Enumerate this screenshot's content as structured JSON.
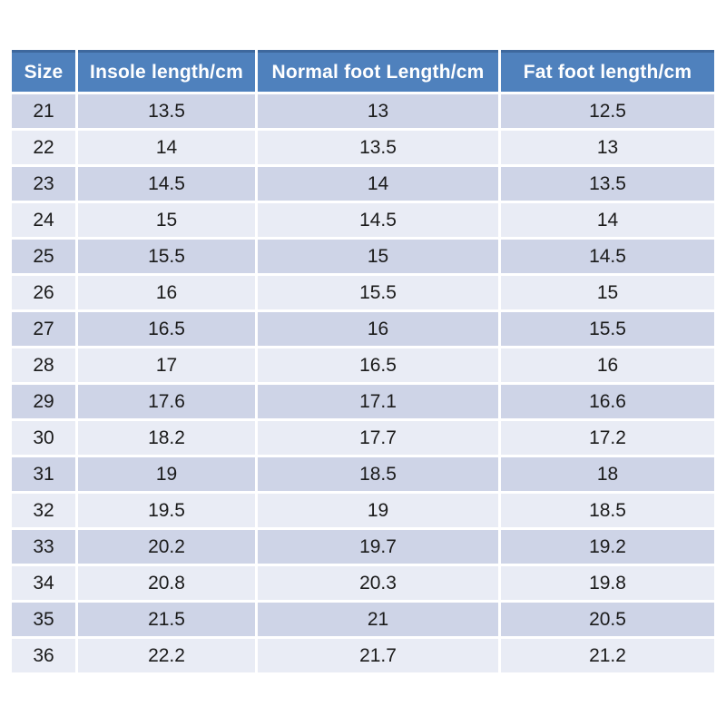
{
  "colors": {
    "header_bg": "#4f81bd",
    "header_top_border": "#3e689d",
    "header_text": "#ffffff",
    "row_odd_bg": "#ced4e7",
    "row_even_bg": "#e9ecf5",
    "grid_gap": "#ffffff",
    "cell_text": "#1b1b1b",
    "page_bg": "#ffffff"
  },
  "chart_data": {
    "type": "table",
    "columns": [
      "Size",
      "Insole length/cm",
      "Normal foot Length/cm",
      "Fat foot length/cm"
    ],
    "rows": [
      [
        "21",
        "13.5",
        "13",
        "12.5"
      ],
      [
        "22",
        "14",
        "13.5",
        "13"
      ],
      [
        "23",
        "14.5",
        "14",
        "13.5"
      ],
      [
        "24",
        "15",
        "14.5",
        "14"
      ],
      [
        "25",
        "15.5",
        "15",
        "14.5"
      ],
      [
        "26",
        "16",
        "15.5",
        "15"
      ],
      [
        "27",
        "16.5",
        "16",
        "15.5"
      ],
      [
        "28",
        "17",
        "16.5",
        "16"
      ],
      [
        "29",
        "17.6",
        "17.1",
        "16.6"
      ],
      [
        "30",
        "18.2",
        "17.7",
        "17.2"
      ],
      [
        "31",
        "19",
        "18.5",
        "18"
      ],
      [
        "32",
        "19.5",
        "19",
        "18.5"
      ],
      [
        "33",
        "20.2",
        "19.7",
        "19.2"
      ],
      [
        "34",
        "20.8",
        "20.3",
        "19.8"
      ],
      [
        "35",
        "21.5",
        "21",
        "20.5"
      ],
      [
        "36",
        "22.2",
        "21.7",
        "21.2"
      ]
    ]
  }
}
